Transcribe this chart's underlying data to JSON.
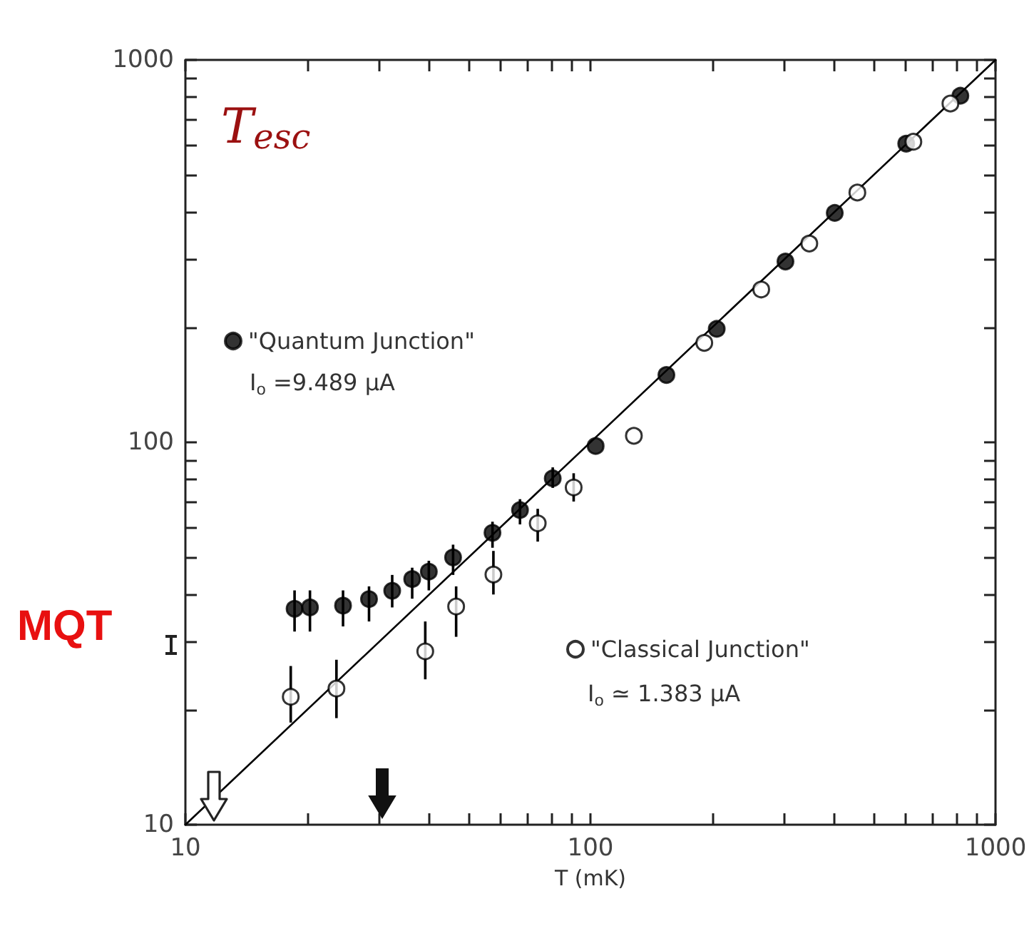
{
  "chart_data": {
    "type": "scatter",
    "ylabel": "T$_{esc}$",
    "xlabel": "T (mK)",
    "log": "xy",
    "xlim": [
      10,
      1000
    ],
    "ylim": [
      10,
      1000
    ],
    "xticks": [
      10,
      100,
      1000
    ],
    "yticks": [
      10,
      100,
      1000
    ],
    "grid": false,
    "legend": "bottom left",
    "marker": "circle",
    "annotations": [
      "I$_{o}$ =9.489 μA",
      "I$_{o}$ ≃ 1.383 μA",
      "MQT"
    ],
    "series": [
      {
        "name": "\"Quantum Junction\"",
        "color": "#000000",
        "x": [
          18.6,
          20.3,
          24.5,
          28.4,
          32.4,
          36.3,
          39.9,
          45.8,
          57.3,
          67,
          80.7,
          103,
          154,
          205,
          303,
          401,
          602,
          819
        ],
        "values": [
          36.7,
          37,
          37.4,
          38.9,
          40.9,
          43.9,
          45.9,
          50,
          58,
          66.5,
          80.5,
          97.8,
          150,
          198,
          297,
          398,
          604,
          806
        ],
        "errors": [
          [
            32,
            41
          ],
          [
            32,
            41
          ],
          [
            33,
            41
          ],
          [
            34,
            42
          ],
          [
            37,
            45
          ],
          [
            39,
            47
          ],
          [
            41,
            49
          ],
          [
            45,
            54
          ],
          [
            53,
            62
          ],
          [
            61,
            71
          ],
          [
            76,
            86
          ],
          null,
          null,
          null,
          null,
          null,
          null,
          null
        ]
      },
      {
        "name": "\"Classical Junction\"",
        "color": "#ffffff",
        "x": [
          18.2,
          23.6,
          39.1,
          46.6,
          57.6,
          74.1,
          90.9,
          128,
          191,
          264,
          347,
          456,
          627,
          774
        ],
        "values": [
          21.6,
          22.7,
          28.4,
          37.2,
          45.1,
          61.4,
          76.2,
          104,
          182,
          251,
          331,
          450,
          611,
          769
        ],
        "errors": [
          [
            18.5,
            26
          ],
          [
            19,
            27
          ],
          [
            24,
            34
          ],
          [
            31,
            42
          ],
          [
            40,
            52
          ],
          [
            55,
            67
          ],
          [
            70,
            83
          ],
          null,
          null,
          null,
          null,
          null,
          null,
          null
        ]
      },
      {
        "type": "line",
        "color": "#000000",
        "marker": "none",
        "x": [
          10,
          1000
        ],
        "values": [
          10,
          1000
        ]
      }
    ]
  }
}
